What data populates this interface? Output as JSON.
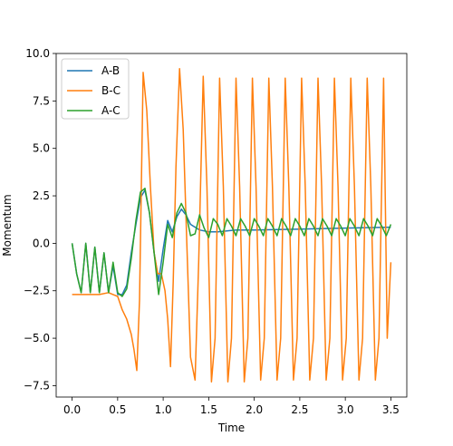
{
  "chart_data": {
    "type": "line",
    "title": "",
    "xlabel": "Time",
    "ylabel": "Momentum",
    "xlim": [
      -0.175,
      3.675
    ],
    "ylim": [
      -8.1,
      10.0
    ],
    "x_ticks": [
      0.0,
      0.5,
      1.0,
      1.5,
      2.0,
      2.5,
      3.0,
      3.5
    ],
    "x_tick_labels": [
      "0.0",
      "0.5",
      "1.0",
      "1.5",
      "2.0",
      "2.5",
      "3.0",
      "3.5"
    ],
    "y_ticks": [
      -7.5,
      -5.0,
      -2.5,
      0.0,
      2.5,
      5.0,
      7.5,
      10.0
    ],
    "y_tick_labels": [
      "−7.5",
      "−5.0",
      "−2.5",
      "0.0",
      "2.5",
      "5.0",
      "7.5",
      "10.0"
    ],
    "grid": false,
    "legend_position": "top-left",
    "series": [
      {
        "name": "A-B",
        "color": "#1f77b4",
        "x": [
          0.0,
          0.05,
          0.1,
          0.15,
          0.2,
          0.25,
          0.3,
          0.35,
          0.4,
          0.45,
          0.5,
          0.55,
          0.6,
          0.65,
          0.7,
          0.75,
          0.8,
          0.85,
          0.9,
          0.95,
          1.0,
          1.05,
          1.1,
          1.15,
          1.2,
          1.25,
          1.3,
          1.4,
          1.5,
          1.6,
          1.8,
          2.0,
          2.5,
          3.0,
          3.5
        ],
        "y": [
          0.0,
          -1.6,
          -2.6,
          0.0,
          -2.6,
          -0.2,
          -2.6,
          -0.5,
          -2.6,
          -1.2,
          -2.7,
          -2.7,
          -2.2,
          -0.5,
          1.0,
          2.4,
          2.8,
          1.6,
          -0.5,
          -2.0,
          -0.3,
          1.2,
          0.6,
          1.4,
          1.8,
          1.5,
          1.0,
          0.7,
          0.6,
          0.6,
          0.7,
          0.7,
          0.75,
          0.8,
          0.85
        ]
      },
      {
        "name": "B-C",
        "color": "#ff7f0e",
        "x": [
          0.0,
          0.3,
          0.4,
          0.45,
          0.5,
          0.55,
          0.6,
          0.65,
          0.68,
          0.71,
          0.74,
          0.78,
          0.82,
          0.86,
          0.9,
          0.94,
          0.98,
          1.02,
          1.05,
          1.08,
          1.11,
          1.14,
          1.18,
          1.22,
          1.26,
          1.3,
          1.35,
          1.39,
          1.44,
          1.48,
          1.53,
          1.57,
          1.62,
          1.66,
          1.71,
          1.75,
          1.8,
          1.84,
          1.89,
          1.93,
          1.98,
          2.02,
          2.07,
          2.11,
          2.16,
          2.2,
          2.25,
          2.29,
          2.34,
          2.38,
          2.43,
          2.47,
          2.52,
          2.56,
          2.61,
          2.65,
          2.7,
          2.74,
          2.79,
          2.83,
          2.88,
          2.92,
          2.97,
          3.01,
          3.06,
          3.1,
          3.15,
          3.19,
          3.24,
          3.28,
          3.33,
          3.37,
          3.42,
          3.46,
          3.5
        ],
        "y": [
          -2.7,
          -2.7,
          -2.6,
          -2.7,
          -2.8,
          -3.5,
          -4.0,
          -4.8,
          -5.6,
          -6.7,
          -3.0,
          9.0,
          7.0,
          3.0,
          -0.5,
          -1.6,
          -1.6,
          -2.5,
          -4.0,
          -6.5,
          -2.0,
          4.0,
          9.2,
          6.0,
          0.0,
          -6.0,
          -7.2,
          -1.0,
          8.8,
          3.0,
          -7.3,
          -5.0,
          8.7,
          3.0,
          -7.3,
          -5.0,
          8.7,
          3.0,
          -7.3,
          -5.0,
          8.7,
          3.0,
          -7.2,
          -5.0,
          8.7,
          3.0,
          -7.2,
          -5.0,
          8.7,
          3.0,
          -7.2,
          -5.0,
          8.7,
          3.0,
          -7.2,
          -5.0,
          8.7,
          3.0,
          -7.2,
          -5.0,
          8.7,
          3.0,
          -7.2,
          -5.0,
          8.7,
          3.0,
          -7.2,
          -5.0,
          8.7,
          3.0,
          -7.2,
          -5.0,
          8.7,
          -5.0,
          -1.0
        ]
      },
      {
        "name": "A-C",
        "color": "#2ca02c",
        "x": [
          0.0,
          0.05,
          0.1,
          0.15,
          0.2,
          0.25,
          0.3,
          0.35,
          0.4,
          0.45,
          0.5,
          0.55,
          0.6,
          0.65,
          0.7,
          0.75,
          0.8,
          0.85,
          0.9,
          0.95,
          1.0,
          1.05,
          1.1,
          1.15,
          1.2,
          1.25,
          1.3,
          1.35,
          1.4,
          1.45,
          1.5,
          1.55,
          1.6,
          1.65,
          1.7,
          1.75,
          1.8,
          1.85,
          1.9,
          1.95,
          2.0,
          2.05,
          2.1,
          2.15,
          2.2,
          2.25,
          2.3,
          2.35,
          2.4,
          2.45,
          2.5,
          2.55,
          2.6,
          2.65,
          2.7,
          2.75,
          2.8,
          2.85,
          2.9,
          2.95,
          3.0,
          3.05,
          3.1,
          3.15,
          3.2,
          3.25,
          3.3,
          3.35,
          3.4,
          3.45,
          3.5
        ],
        "y": [
          0.0,
          -1.6,
          -2.6,
          0.0,
          -2.6,
          -0.2,
          -2.6,
          -0.5,
          -2.6,
          -1.0,
          -2.6,
          -2.8,
          -2.4,
          -0.8,
          1.2,
          2.7,
          2.9,
          1.6,
          -0.5,
          -2.7,
          -1.0,
          1.0,
          0.3,
          1.6,
          2.1,
          1.6,
          0.4,
          0.5,
          1.5,
          0.8,
          0.3,
          1.3,
          1.0,
          0.4,
          1.3,
          0.9,
          0.4,
          1.3,
          0.9,
          0.4,
          1.3,
          0.9,
          0.4,
          1.3,
          0.9,
          0.4,
          1.3,
          0.9,
          0.4,
          1.3,
          0.9,
          0.4,
          1.3,
          0.9,
          0.4,
          1.3,
          0.9,
          0.4,
          1.3,
          0.9,
          0.4,
          1.3,
          0.9,
          0.4,
          1.3,
          0.9,
          0.4,
          1.3,
          0.9,
          0.4,
          1.0
        ]
      }
    ]
  }
}
